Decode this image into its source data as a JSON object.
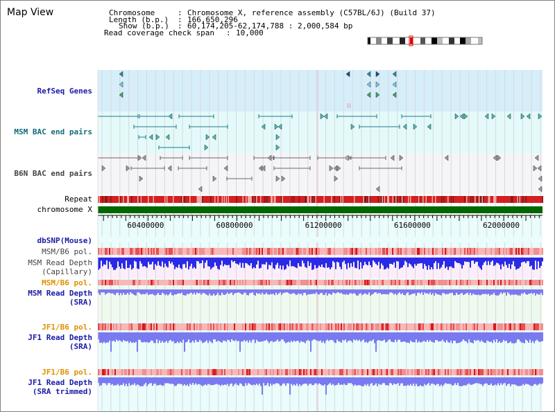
{
  "title": "Map View",
  "header": {
    "chromosome_label": "Chromosome",
    "chromosome_value": "Chromosome X, reference assembly (C57BL/6J) (Build 37)",
    "length_label": "Length (b.p.)",
    "length_value": "166,650,296",
    "show_label": "Show (b.p.)",
    "show_value": "60,174,205-62,174,788 : 2,000,584 bp",
    "coverage_label": "Read coverage check span",
    "coverage_value": "10,000"
  },
  "tracks": {
    "refseq": "RefSeq Genes",
    "msm_bac": "MSM BAC end pairs",
    "b6n_bac": "B6N BAC end pairs",
    "repeat": "Repeat",
    "chromosome": "chromosome X",
    "dbsnp": "dbSNP(Mouse)",
    "msm_b6_pol": "MSM/B6 pol.",
    "msm_depth_cap_1": "MSM Read Depth",
    "msm_depth_cap_2": "(Capillary)",
    "msm_b6_pol_2": "MSM/B6 pol.",
    "msm_depth_sra_1": "MSM Read Depth",
    "msm_depth_sra_2": "(SRA)",
    "jf1_b6_pol": "JF1/B6 pol.",
    "jf1_depth_sra_1": "JF1 Read Depth",
    "jf1_depth_sra_2": "(SRA)",
    "jf1_b6_pol_2": "JF1/B6 pol.",
    "jf1_depth_trim_1": "JF1 Read Depth",
    "jf1_depth_trim_2": "(SRA trimmed)"
  },
  "axis": {
    "ticks": [
      "60400000",
      "60800000",
      "61200000",
      "61600000",
      "62000000"
    ],
    "start": 60174205,
    "end": 62174788
  },
  "colors": {
    "refseq_band": "#d6eefa",
    "msm_band": "#e4fafa",
    "b6n_band": "#f5f5f8",
    "repeat": "#d42020",
    "chromosome": "#006600",
    "depth_blue": "#2a2ae6",
    "depth_light": "#7a7af0",
    "pol_red": "#e83030"
  }
}
